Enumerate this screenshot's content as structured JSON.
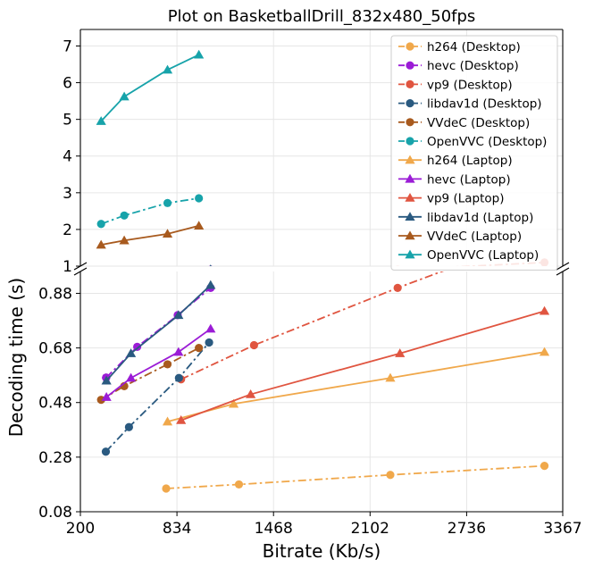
{
  "chart_data": {
    "type": "line",
    "title": "Plot on BasketballDrill_832x480_50fps",
    "xlabel": "Bitrate (Kb/s)",
    "ylabel": "Decoding time (s)",
    "broken_y_axis": true,
    "upper_panel": {
      "ylim": [
        1.0,
        7.45
      ],
      "yticks": [
        1,
        2,
        3,
        4,
        5,
        6,
        7
      ],
      "ytick_labels": [
        "1",
        "2",
        "3",
        "4",
        "5",
        "6",
        "7"
      ]
    },
    "lower_panel": {
      "ylim": [
        0.08,
        0.96
      ],
      "yticks": [
        0.08,
        0.28,
        0.48,
        0.68,
        0.88
      ],
      "ytick_labels": [
        "0.08",
        "0.28",
        "0.48",
        "0.68",
        "0.88"
      ]
    },
    "xlim": [
      200,
      3367
    ],
    "xticks": [
      200,
      834,
      1468,
      2102,
      2736,
      3367
    ],
    "xtick_labels": [
      "200",
      "834",
      "1468",
      "2102",
      "2736",
      "3367"
    ],
    "grid": true,
    "legend_position": "top-right",
    "series": [
      {
        "name": "h264 (Desktop)",
        "color": "#f0a84b",
        "marker": "circle",
        "linestyle": "dashdot",
        "x": [
          763,
          1241,
          2235,
          3247
        ],
        "y": [
          0.165,
          0.18,
          0.215,
          0.248
        ]
      },
      {
        "name": "hevc (Desktop)",
        "color": "#9b1cd6",
        "marker": "circle",
        "linestyle": "dashdot",
        "x": [
          369,
          369,
          369,
          573,
          839,
          1055
        ],
        "y": [
          0.571,
          0.571,
          0.571,
          0.684,
          0.8,
          0.9
        ]
      },
      {
        "name": "vp9 (Desktop)",
        "color": "#e05540",
        "marker": "circle",
        "linestyle": "dashdot",
        "x": [
          861,
          1340,
          2283,
          3247
        ],
        "y": [
          0.565,
          0.69,
          0.9,
          1.1
        ]
      },
      {
        "name": "libdav1d (Desktop)",
        "color": "#2a5a80",
        "marker": "circle",
        "linestyle": "dashdot",
        "x": [
          367,
          519,
          847,
          1045
        ],
        "y": [
          0.3,
          0.39,
          0.57,
          0.7
        ]
      },
      {
        "name": "VVdeC (Desktop)",
        "color": "#a85a1e",
        "marker": "circle",
        "linestyle": "dashdot",
        "x": [
          336,
          488,
          772,
          978
        ],
        "y": [
          0.49,
          0.54,
          0.62,
          0.68
        ]
      },
      {
        "name": "OpenVVC (Desktop)",
        "color": "#17a3aa",
        "marker": "circle",
        "linestyle": "dashdot",
        "x": [
          336,
          488,
          772,
          978
        ],
        "y": [
          2.15,
          2.38,
          2.72,
          2.85
        ]
      },
      {
        "name": "h264 (Laptop)",
        "color": "#f0a84b",
        "marker": "triangle",
        "linestyle": "solid",
        "x": [
          772,
          1206,
          2235,
          3247
        ],
        "y": [
          0.41,
          0.475,
          0.57,
          0.665
        ]
      },
      {
        "name": "hevc (Laptop)",
        "color": "#9b1cd6",
        "marker": "triangle",
        "linestyle": "solid",
        "x": [
          371,
          532,
          844,
          1055
        ],
        "y": [
          0.5,
          0.57,
          0.665,
          0.75
        ]
      },
      {
        "name": "vp9 (Laptop)",
        "color": "#e05540",
        "marker": "triangle",
        "linestyle": "solid",
        "x": [
          861,
          1318,
          2298,
          3247
        ],
        "y": [
          0.415,
          0.51,
          0.66,
          0.815
        ]
      },
      {
        "name": "libdav1d (Laptop)",
        "color": "#2a5a80",
        "marker": "triangle",
        "linestyle": "solid",
        "x": [
          371,
          532,
          844,
          1055
        ],
        "y": [
          0.56,
          0.66,
          0.8,
          0.91
        ]
      },
      {
        "name": "VVdeC (Laptop)",
        "color": "#a85a1e",
        "marker": "triangle",
        "linestyle": "solid",
        "x": [
          336,
          488,
          772,
          978
        ],
        "y": [
          1.58,
          1.7,
          1.88,
          2.1
        ]
      },
      {
        "name": "OpenVVC (Laptop)",
        "color": "#17a3aa",
        "marker": "triangle",
        "linestyle": "solid",
        "x": [
          336,
          488,
          772,
          978
        ],
        "y": [
          4.95,
          5.62,
          6.35,
          6.76
        ]
      }
    ]
  }
}
